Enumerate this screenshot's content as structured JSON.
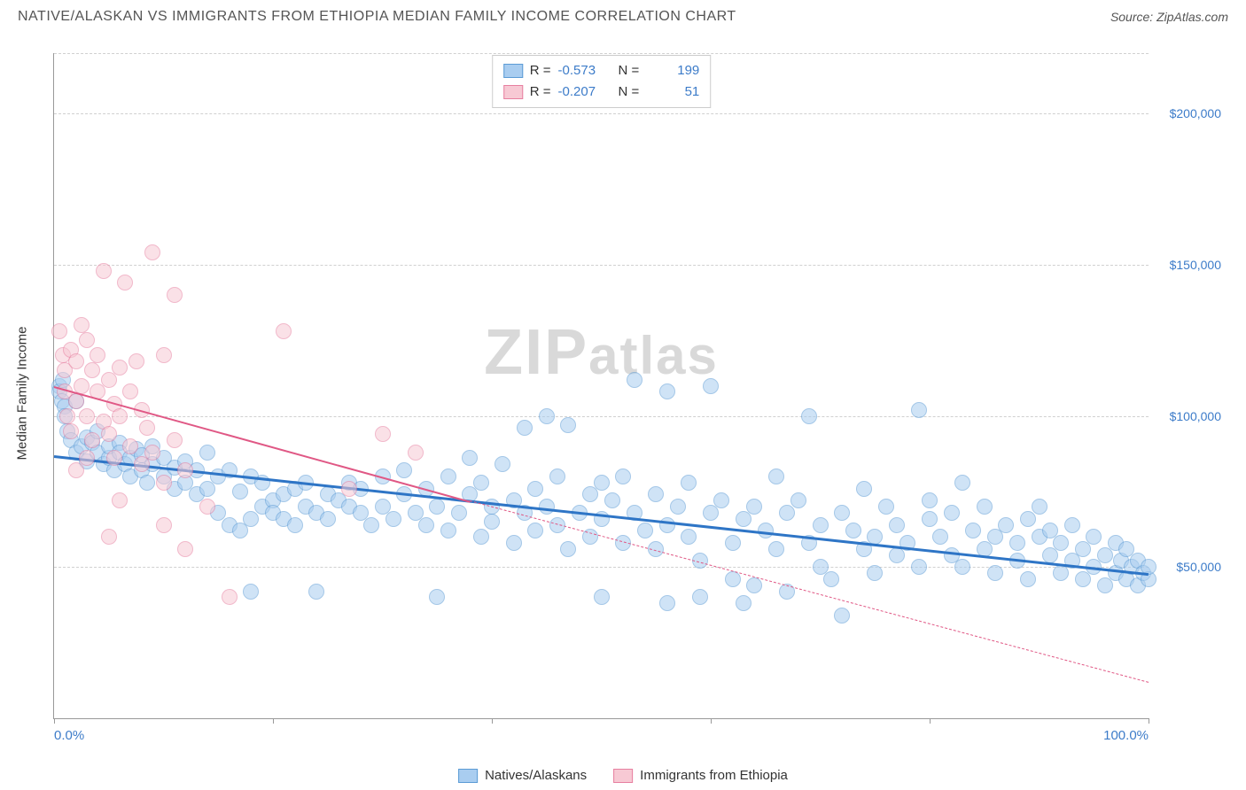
{
  "title": "NATIVE/ALASKAN VS IMMIGRANTS FROM ETHIOPIA MEDIAN FAMILY INCOME CORRELATION CHART",
  "source": "Source: ZipAtlas.com",
  "watermark": "ZIPatlas",
  "y_axis_title": "Median Family Income",
  "colors": {
    "blue_fill": "#a9cdf0",
    "blue_stroke": "#5b9bd5",
    "blue_line": "#2e75c6",
    "pink_fill": "#f7c9d4",
    "pink_stroke": "#e77fa0",
    "pink_line": "#e05885",
    "tick_text": "#3d7cc9",
    "grid": "#d0d0d0",
    "watermark": "#d9d9d9"
  },
  "chart": {
    "type": "scatter",
    "xlim": [
      0,
      100
    ],
    "ylim": [
      0,
      220000
    ],
    "xticks": [
      0,
      20,
      40,
      60,
      80,
      100
    ],
    "xtick_labels_shown": {
      "0": "0.0%",
      "100": "100.0%"
    },
    "yticks": [
      50000,
      100000,
      150000,
      200000
    ],
    "ytick_labels": [
      "$50,000",
      "$100,000",
      "$150,000",
      "$200,000"
    ],
    "point_radius": 9,
    "point_opacity": 0.55
  },
  "series": [
    {
      "name": "Natives/Alaskans",
      "color_fill_key": "blue_fill",
      "color_stroke_key": "blue_stroke",
      "R": "-0.573",
      "N": "199",
      "trend": {
        "x1": 0,
        "y1": 87000,
        "x2": 100,
        "y2": 48000,
        "solid": true,
        "width": 3,
        "color_key": "blue_line"
      },
      "points": [
        [
          0.5,
          110000
        ],
        [
          0.5,
          108000
        ],
        [
          0.7,
          105000
        ],
        [
          0.8,
          112000
        ],
        [
          1,
          103000
        ],
        [
          1,
          100000
        ],
        [
          1.2,
          95000
        ],
        [
          1.5,
          92000
        ],
        [
          2,
          105000
        ],
        [
          2,
          88000
        ],
        [
          2.5,
          90000
        ],
        [
          3,
          93000
        ],
        [
          3,
          85000
        ],
        [
          3.5,
          91000
        ],
        [
          4,
          88000
        ],
        [
          4,
          95000
        ],
        [
          4.5,
          84000
        ],
        [
          5,
          86000
        ],
        [
          5,
          90000
        ],
        [
          5.5,
          82000
        ],
        [
          6,
          91000
        ],
        [
          6,
          88000
        ],
        [
          6.5,
          84000
        ],
        [
          7,
          86000
        ],
        [
          7,
          80000
        ],
        [
          7.5,
          89000
        ],
        [
          8,
          82000
        ],
        [
          8,
          87000
        ],
        [
          8.5,
          78000
        ],
        [
          9,
          84000
        ],
        [
          9,
          90000
        ],
        [
          10,
          80000
        ],
        [
          10,
          86000
        ],
        [
          11,
          83000
        ],
        [
          11,
          76000
        ],
        [
          12,
          85000
        ],
        [
          12,
          78000
        ],
        [
          13,
          74000
        ],
        [
          13,
          82000
        ],
        [
          14,
          76000
        ],
        [
          14,
          88000
        ],
        [
          15,
          68000
        ],
        [
          15,
          80000
        ],
        [
          16,
          64000
        ],
        [
          16,
          82000
        ],
        [
          17,
          62000
        ],
        [
          17,
          75000
        ],
        [
          18,
          66000
        ],
        [
          18,
          80000
        ],
        [
          19,
          70000
        ],
        [
          19,
          78000
        ],
        [
          20,
          72000
        ],
        [
          20,
          68000
        ],
        [
          21,
          74000
        ],
        [
          21,
          66000
        ],
        [
          22,
          76000
        ],
        [
          22,
          64000
        ],
        [
          23,
          70000
        ],
        [
          23,
          78000
        ],
        [
          24,
          68000
        ],
        [
          25,
          74000
        ],
        [
          25,
          66000
        ],
        [
          26,
          72000
        ],
        [
          27,
          70000
        ],
        [
          27,
          78000
        ],
        [
          28,
          68000
        ],
        [
          28,
          76000
        ],
        [
          29,
          64000
        ],
        [
          30,
          70000
        ],
        [
          30,
          80000
        ],
        [
          31,
          66000
        ],
        [
          32,
          74000
        ],
        [
          32,
          82000
        ],
        [
          33,
          68000
        ],
        [
          34,
          64000
        ],
        [
          34,
          76000
        ],
        [
          35,
          70000
        ],
        [
          36,
          80000
        ],
        [
          36,
          62000
        ],
        [
          37,
          68000
        ],
        [
          38,
          74000
        ],
        [
          38,
          86000
        ],
        [
          39,
          60000
        ],
        [
          39,
          78000
        ],
        [
          40,
          70000
        ],
        [
          40,
          65000
        ],
        [
          41,
          84000
        ],
        [
          42,
          72000
        ],
        [
          42,
          58000
        ],
        [
          43,
          96000
        ],
        [
          43,
          68000
        ],
        [
          44,
          62000
        ],
        [
          44,
          76000
        ],
        [
          45,
          100000
        ],
        [
          45,
          70000
        ],
        [
          46,
          64000
        ],
        [
          46,
          80000
        ],
        [
          47,
          56000
        ],
        [
          47,
          97000
        ],
        [
          48,
          68000
        ],
        [
          49,
          74000
        ],
        [
          49,
          60000
        ],
        [
          50,
          78000
        ],
        [
          50,
          66000
        ],
        [
          51,
          72000
        ],
        [
          52,
          80000
        ],
        [
          52,
          58000
        ],
        [
          53,
          68000
        ],
        [
          53,
          112000
        ],
        [
          54,
          62000
        ],
        [
          55,
          74000
        ],
        [
          55,
          56000
        ],
        [
          56,
          108000
        ],
        [
          56,
          64000
        ],
        [
          57,
          70000
        ],
        [
          58,
          60000
        ],
        [
          58,
          78000
        ],
        [
          59,
          52000
        ],
        [
          59,
          40000
        ],
        [
          60,
          68000
        ],
        [
          60,
          110000
        ],
        [
          61,
          72000
        ],
        [
          62,
          58000
        ],
        [
          62,
          46000
        ],
        [
          63,
          66000
        ],
        [
          63,
          38000
        ],
        [
          64,
          44000
        ],
        [
          64,
          70000
        ],
        [
          65,
          62000
        ],
        [
          66,
          56000
        ],
        [
          66,
          80000
        ],
        [
          67,
          68000
        ],
        [
          67,
          42000
        ],
        [
          68,
          72000
        ],
        [
          69,
          58000
        ],
        [
          69,
          100000
        ],
        [
          70,
          64000
        ],
        [
          70,
          50000
        ],
        [
          71,
          46000
        ],
        [
          72,
          68000
        ],
        [
          72,
          34000
        ],
        [
          73,
          62000
        ],
        [
          74,
          56000
        ],
        [
          74,
          76000
        ],
        [
          75,
          60000
        ],
        [
          75,
          48000
        ],
        [
          76,
          70000
        ],
        [
          77,
          54000
        ],
        [
          77,
          64000
        ],
        [
          78,
          58000
        ],
        [
          79,
          102000
        ],
        [
          79,
          50000
        ],
        [
          80,
          66000
        ],
        [
          80,
          72000
        ],
        [
          81,
          60000
        ],
        [
          82,
          54000
        ],
        [
          82,
          68000
        ],
        [
          83,
          78000
        ],
        [
          83,
          50000
        ],
        [
          84,
          62000
        ],
        [
          85,
          56000
        ],
        [
          85,
          70000
        ],
        [
          86,
          60000
        ],
        [
          86,
          48000
        ],
        [
          87,
          64000
        ],
        [
          88,
          58000
        ],
        [
          88,
          52000
        ],
        [
          89,
          66000
        ],
        [
          89,
          46000
        ],
        [
          90,
          60000
        ],
        [
          90,
          70000
        ],
        [
          91,
          54000
        ],
        [
          91,
          62000
        ],
        [
          92,
          58000
        ],
        [
          92,
          48000
        ],
        [
          93,
          64000
        ],
        [
          93,
          52000
        ],
        [
          94,
          56000
        ],
        [
          94,
          46000
        ],
        [
          95,
          60000
        ],
        [
          95,
          50000
        ],
        [
          96,
          54000
        ],
        [
          96,
          44000
        ],
        [
          97,
          58000
        ],
        [
          97,
          48000
        ],
        [
          97.5,
          52000
        ],
        [
          98,
          46000
        ],
        [
          98,
          56000
        ],
        [
          98.5,
          50000
        ],
        [
          99,
          44000
        ],
        [
          99,
          52000
        ],
        [
          99.5,
          48000
        ],
        [
          100,
          46000
        ],
        [
          100,
          50000
        ],
        [
          18,
          42000
        ],
        [
          24,
          42000
        ],
        [
          35,
          40000
        ],
        [
          50,
          40000
        ],
        [
          56,
          38000
        ]
      ]
    },
    {
      "name": "Immigrants from Ethiopia",
      "color_fill_key": "pink_fill",
      "color_stroke_key": "pink_stroke",
      "R": "-0.207",
      "N": "51",
      "trend": {
        "x1": 0,
        "y1": 110000,
        "x2": 38,
        "y2": 72000,
        "solid": true,
        "width": 2,
        "color_key": "pink_line"
      },
      "trend_ext": {
        "x1": 38,
        "y1": 72000,
        "x2": 100,
        "y2": 12000,
        "solid": false,
        "width": 1,
        "color_key": "pink_line"
      },
      "points": [
        [
          0.5,
          128000
        ],
        [
          0.8,
          120000
        ],
        [
          1,
          115000
        ],
        [
          1,
          108000
        ],
        [
          1.2,
          100000
        ],
        [
          1.5,
          122000
        ],
        [
          1.5,
          95000
        ],
        [
          2,
          118000
        ],
        [
          2,
          105000
        ],
        [
          2,
          82000
        ],
        [
          2.5,
          130000
        ],
        [
          2.5,
          110000
        ],
        [
          3,
          125000
        ],
        [
          3,
          100000
        ],
        [
          3,
          86000
        ],
        [
          3.5,
          115000
        ],
        [
          3.5,
          92000
        ],
        [
          4,
          108000
        ],
        [
          4,
          120000
        ],
        [
          4.5,
          98000
        ],
        [
          4.5,
          148000
        ],
        [
          5,
          112000
        ],
        [
          5,
          94000
        ],
        [
          5,
          60000
        ],
        [
          5.5,
          104000
        ],
        [
          5.5,
          86000
        ],
        [
          6,
          100000
        ],
        [
          6,
          116000
        ],
        [
          6,
          72000
        ],
        [
          6.5,
          144000
        ],
        [
          7,
          90000
        ],
        [
          7,
          108000
        ],
        [
          7.5,
          118000
        ],
        [
          8,
          84000
        ],
        [
          8,
          102000
        ],
        [
          8.5,
          96000
        ],
        [
          9,
          154000
        ],
        [
          9,
          88000
        ],
        [
          10,
          120000
        ],
        [
          10,
          78000
        ],
        [
          10,
          64000
        ],
        [
          11,
          92000
        ],
        [
          11,
          140000
        ],
        [
          12,
          56000
        ],
        [
          12,
          82000
        ],
        [
          14,
          70000
        ],
        [
          16,
          40000
        ],
        [
          21,
          128000
        ],
        [
          27,
          76000
        ],
        [
          30,
          94000
        ],
        [
          33,
          88000
        ]
      ]
    }
  ],
  "bottom_legend": [
    {
      "label": "Natives/Alaskans",
      "fill_key": "blue_fill",
      "stroke_key": "blue_stroke"
    },
    {
      "label": "Immigrants from Ethiopia",
      "fill_key": "pink_fill",
      "stroke_key": "pink_stroke"
    }
  ]
}
